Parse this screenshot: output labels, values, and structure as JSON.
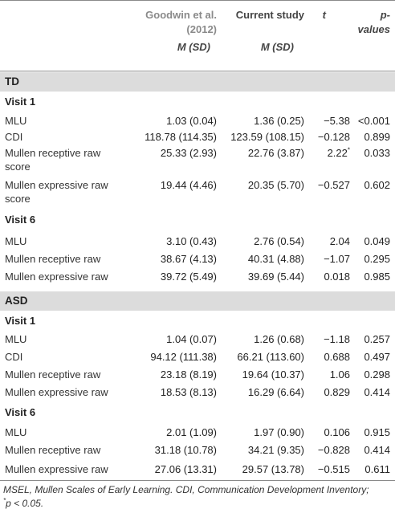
{
  "header": {
    "col1_name": "Goodwin et al. (2012)",
    "col1_stat": "M (SD)",
    "col2_name": "Current study",
    "col2_stat": "M (SD)",
    "col3": "t",
    "col4": "p-values"
  },
  "groups": [
    {
      "name": "TD",
      "visits": [
        {
          "label": "Visit 1",
          "rows": [
            {
              "measure": "MLU",
              "goodwin": "1.03 (0.04)",
              "current": "1.36 (0.25)",
              "t": "−5.38",
              "p": "<0.001"
            },
            {
              "measure": "CDI",
              "goodwin": "118.78 (114.35)",
              "current": "123.59 (108.15)",
              "t": "−0.128",
              "p": "0.899"
            },
            {
              "measure": "Mullen receptive raw score",
              "goodwin": "25.33 (2.93)",
              "current": "22.76 (3.87)",
              "t": "2.22",
              "t_mark": "*",
              "p": "0.033"
            },
            {
              "measure": "Mullen expressive raw score",
              "goodwin": "19.44 (4.46)",
              "current": "20.35 (5.70)",
              "t": "−0.527",
              "p": "0.602"
            }
          ]
        },
        {
          "label": "Visit 6",
          "rows": [
            {
              "measure": "MLU",
              "goodwin": "3.10 (0.43)",
              "current": "2.76 (0.54)",
              "t": "2.04",
              "p": "0.049"
            },
            {
              "measure": "Mullen receptive raw",
              "goodwin": "38.67 (4.13)",
              "current": "40.31 (4.88)",
              "t": "−1.07",
              "p": "0.295"
            },
            {
              "measure": "Mullen expressive raw",
              "goodwin": "39.72 (5.49)",
              "current": "39.69 (5.44)",
              "t": "0.018",
              "p": "0.985"
            }
          ]
        }
      ]
    },
    {
      "name": "ASD",
      "visits": [
        {
          "label": "Visit 1",
          "rows": [
            {
              "measure": "MLU",
              "goodwin": "1.04 (0.07)",
              "current": "1.26 (0.68)",
              "t": "−1.18",
              "p": "0.257"
            },
            {
              "measure": "CDI",
              "goodwin": "94.12 (111.38)",
              "current": "66.21 (113.60)",
              "t": "0.688",
              "p": "0.497"
            },
            {
              "measure": "Mullen receptive raw",
              "goodwin": "23.18 (8.19)",
              "current": "19.64 (10.37)",
              "t": "1.06",
              "p": "0.298"
            },
            {
              "measure": "Mullen expressive raw",
              "goodwin": "18.53 (8.13)",
              "current": "16.29 (6.64)",
              "t": "0.829",
              "p": "0.414"
            }
          ]
        },
        {
          "label": "Visit 6",
          "rows": [
            {
              "measure": "MLU",
              "goodwin": "2.01 (1.09)",
              "current": "1.97 (0.90)",
              "t": "0.106",
              "p": "0.915"
            },
            {
              "measure": "Mullen receptive raw",
              "goodwin": "31.18 (10.78)",
              "current": "34.21 (9.35)",
              "t": "−0.828",
              "p": "0.414"
            },
            {
              "measure": "Mullen expressive raw",
              "goodwin": "27.06 (13.31)",
              "current": "29.57 (13.78)",
              "t": "−0.515",
              "p": "0.611"
            }
          ]
        }
      ]
    }
  ],
  "footnote": {
    "line1": "MSEL, Mullen Scales of Early Learning. CDI, Communication Development Inventory;",
    "mark": "*",
    "line2": "p < 0.05."
  }
}
